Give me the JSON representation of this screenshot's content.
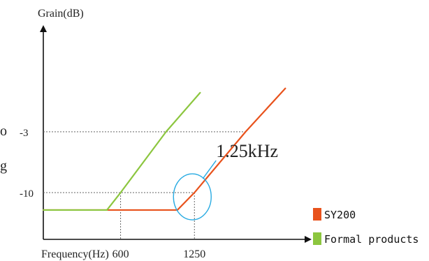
{
  "chart_data": {
    "type": "line",
    "ylabel": "Grain(dB)",
    "xlabel": "Frequency(Hz)",
    "x_ticks": [
      600,
      1250
    ],
    "y_ticks": [
      -10,
      -3
    ],
    "annotation": {
      "text": "1.25kHz",
      "x": 1250,
      "y": -10,
      "color": "#29abe2"
    },
    "series": [
      {
        "name": "SY200",
        "color": "#e8521c",
        "points": [
          [
            -80,
            -12
          ],
          [
            1100,
            -12
          ],
          [
            1250,
            -10
          ],
          [
            1700,
            -3
          ],
          [
            2050,
            2
          ]
        ]
      },
      {
        "name": "Formal products",
        "color": "#8cc63f",
        "points": [
          [
            -80,
            -12
          ],
          [
            480,
            -12
          ],
          [
            600,
            -10
          ],
          [
            1000,
            -3
          ],
          [
            1300,
            1.5
          ]
        ]
      }
    ],
    "legend": {
      "position": "bottom-right"
    },
    "grid": false,
    "reference_lines": true,
    "xlim": [
      -80,
      2220
    ],
    "ylim": [
      8.8,
      -15.3
    ]
  },
  "margin_marks": [
    "o",
    "g"
  ]
}
